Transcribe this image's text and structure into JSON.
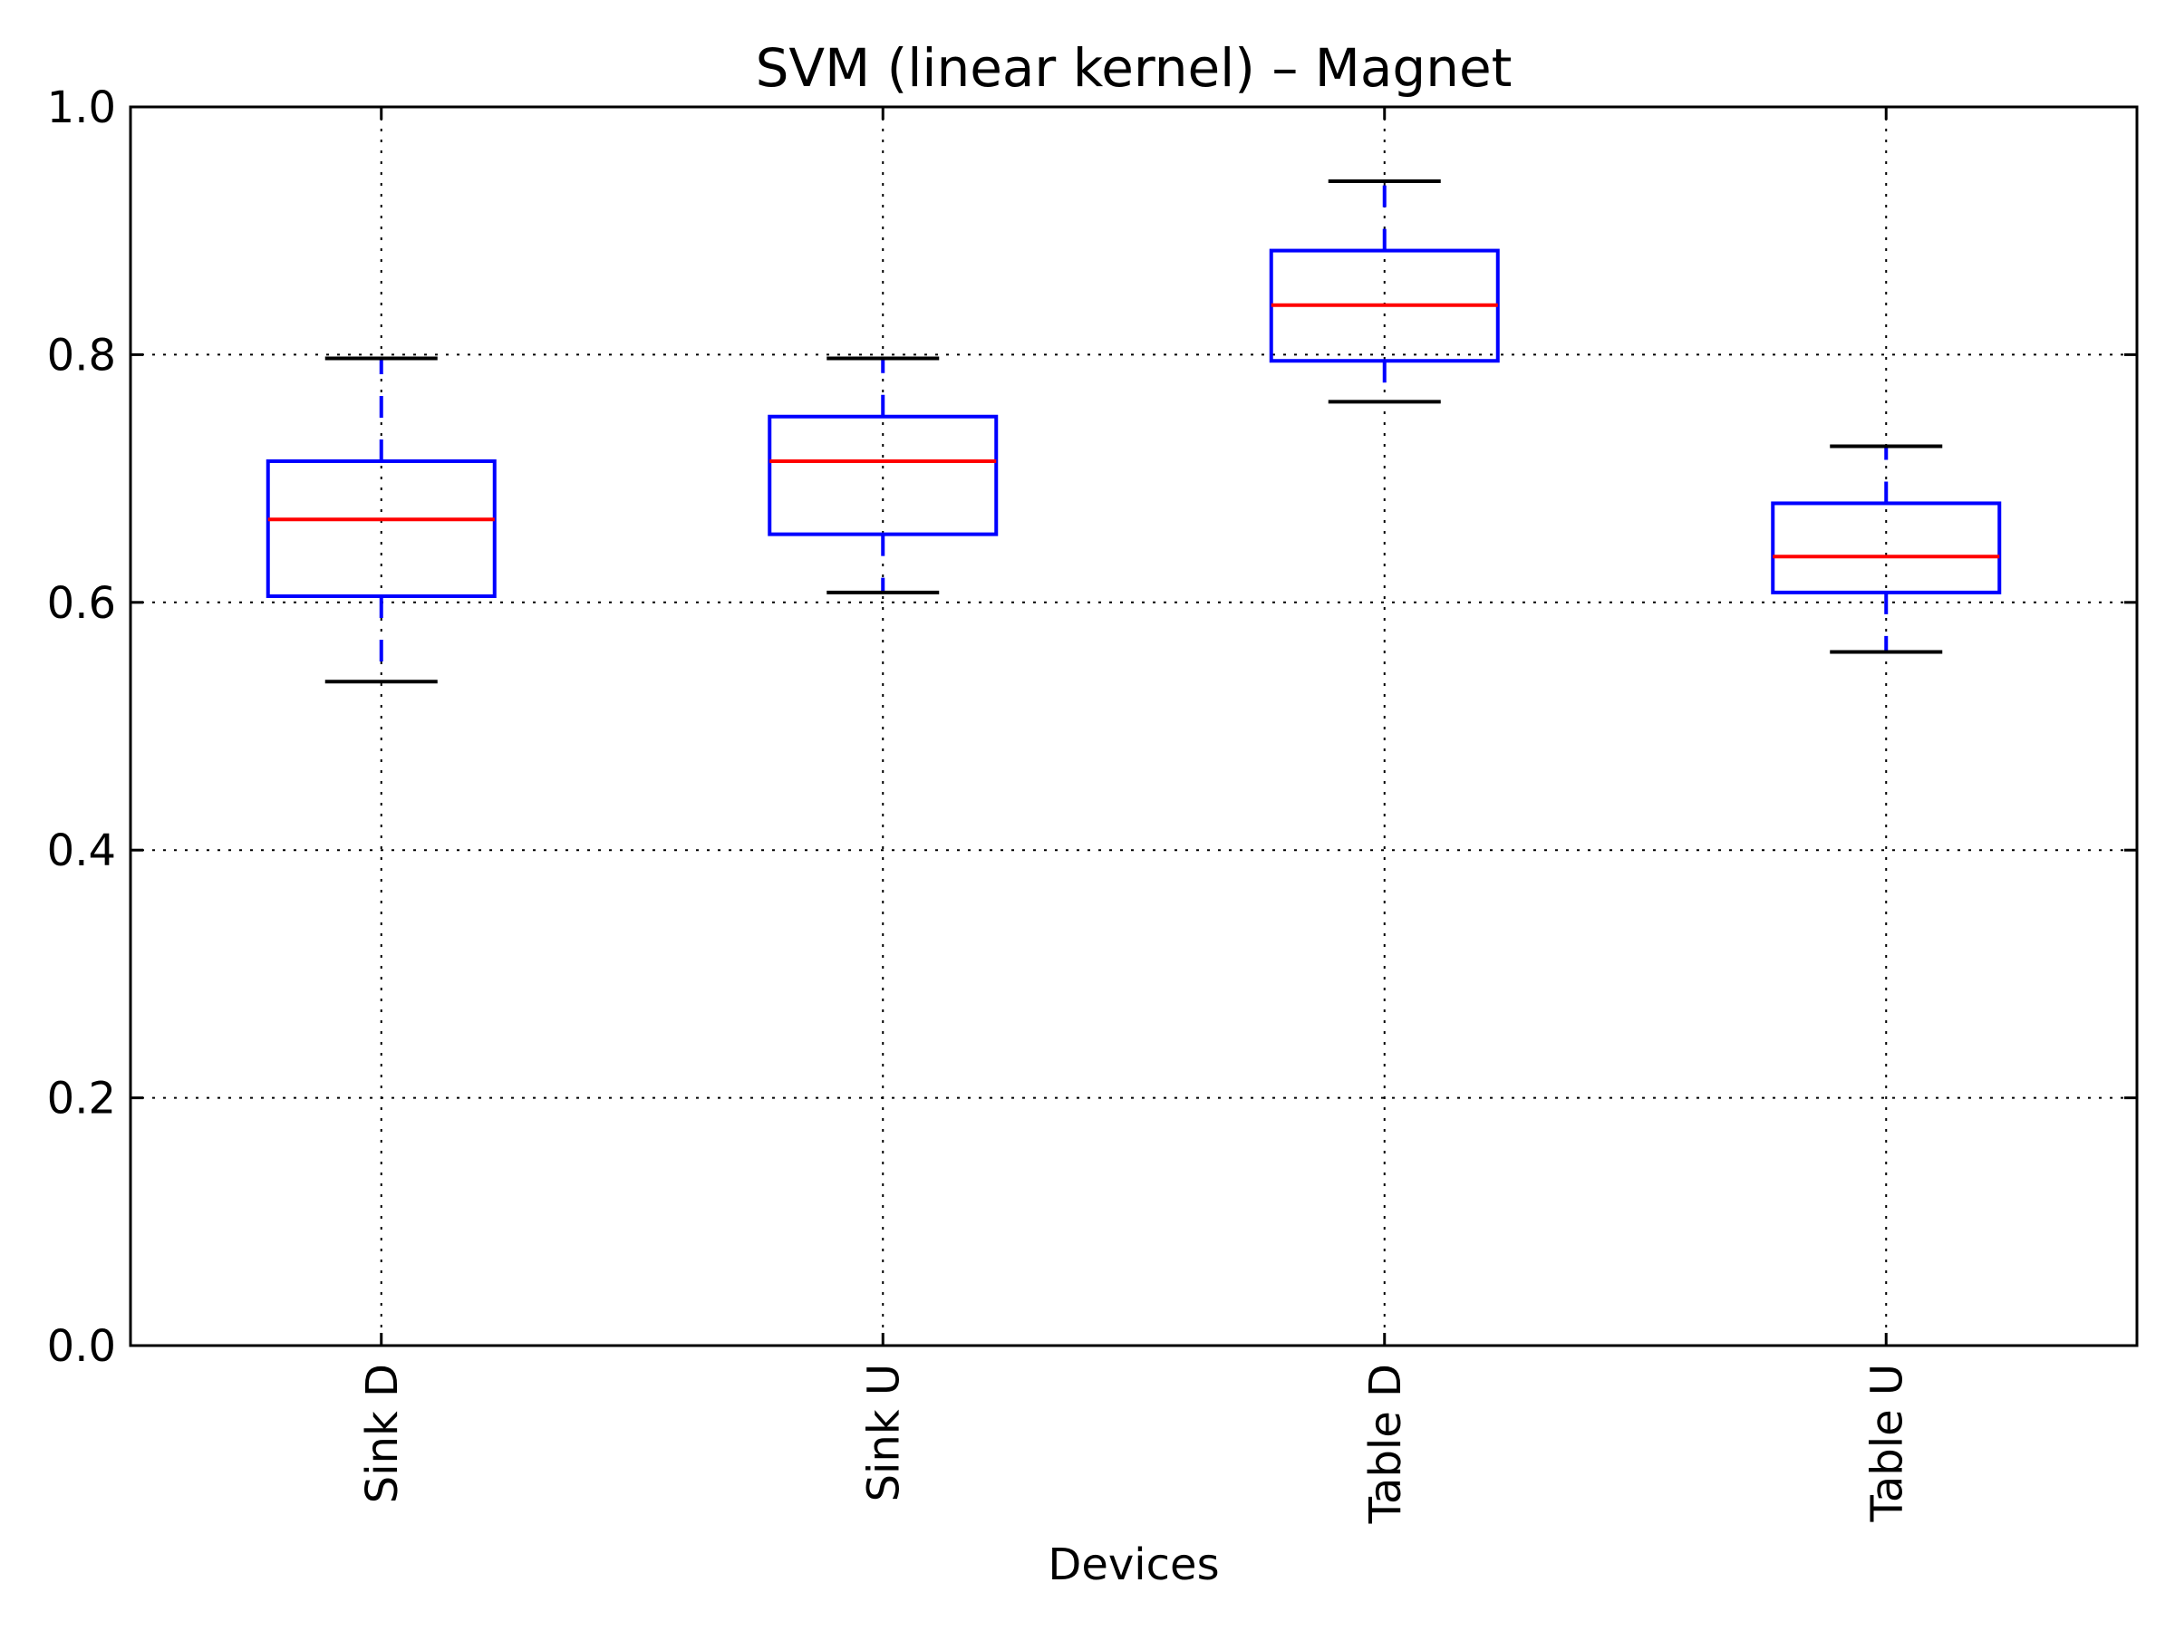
{
  "chart_data": {
    "type": "box",
    "title": "SVM (linear kernel) – Magnet",
    "xlabel": "Devices",
    "ylabel": "",
    "ylim": [
      0.0,
      1.0
    ],
    "yticks": [
      "0.0",
      "0.2",
      "0.4",
      "0.6",
      "0.8",
      "1.0"
    ],
    "categories": [
      "Sink D",
      "Sink U",
      "Table D",
      "Table U"
    ],
    "boxes": [
      {
        "category": "Sink D",
        "whisker_low": 0.536,
        "q1": 0.605,
        "median": 0.667,
        "q3": 0.714,
        "whisker_high": 0.797
      },
      {
        "category": "Sink U",
        "whisker_low": 0.608,
        "q1": 0.655,
        "median": 0.714,
        "q3": 0.75,
        "whisker_high": 0.797
      },
      {
        "category": "Table D",
        "whisker_low": 0.762,
        "q1": 0.795,
        "median": 0.84,
        "q3": 0.884,
        "whisker_high": 0.94
      },
      {
        "category": "Table U",
        "whisker_low": 0.56,
        "q1": 0.608,
        "median": 0.637,
        "q3": 0.68,
        "whisker_high": 0.726
      }
    ],
    "grid": true,
    "colors": {
      "box": "#0000ff",
      "median": "#ff0000",
      "whisker_dash": "#0000ff",
      "cap": "#000000",
      "grid": "#000000"
    }
  }
}
